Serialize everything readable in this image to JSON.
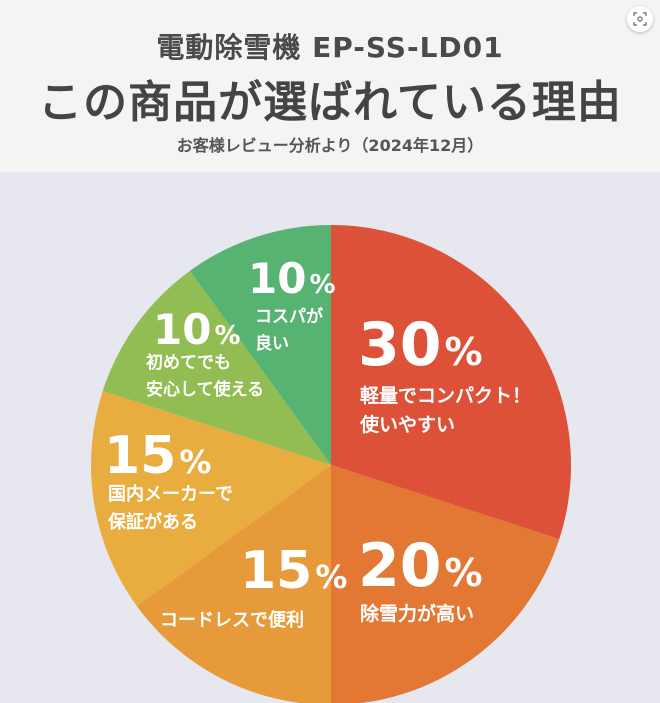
{
  "header": {
    "product_name": "電動除雪機 EP-SS-LD01",
    "headline": "この商品が選ばれている理由",
    "subtitle": "お客様レビュー分析より（2024年12月）"
  },
  "lens_button": {
    "icon": "lens-icon"
  },
  "chart_data": {
    "type": "pie",
    "title": "この商品が選ばれている理由",
    "subtitle": "お客様レビュー分析より（2024年12月）",
    "start": "12 o'clock",
    "direction": "clockwise",
    "slices": [
      {
        "value": 30,
        "percent_text": "30",
        "label": [
          "軽量でコンパクト！",
          "使いやすい"
        ],
        "color": "#dd5139"
      },
      {
        "value": 20,
        "percent_text": "20",
        "label": [
          "除雪力が高い"
        ],
        "color": "#e27834"
      },
      {
        "value": 15,
        "percent_text": "15",
        "label": [
          "コードレスで便利"
        ],
        "color": "#e79a3a"
      },
      {
        "value": 15,
        "percent_text": "15",
        "label": [
          "国内メーカーで",
          "保証がある"
        ],
        "color": "#e9ad3f"
      },
      {
        "value": 10,
        "percent_text": "10",
        "label": [
          "初めてでも",
          "安心して使える"
        ],
        "color": "#91bd52"
      },
      {
        "value": 10,
        "percent_text": "10",
        "label": [
          "コスパが",
          "良い"
        ],
        "color": "#57b372"
      }
    ],
    "percent_sign": "%"
  }
}
